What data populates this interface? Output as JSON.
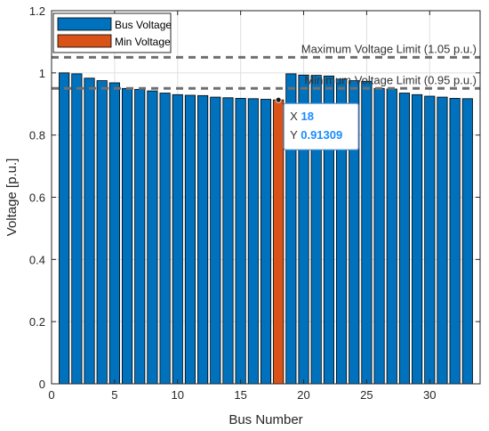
{
  "chart_data": {
    "type": "bar",
    "xlabel": "Bus Number",
    "ylabel": "Voltage [p.u.]",
    "xlim": [
      0,
      34
    ],
    "ylim": [
      0,
      1.2
    ],
    "xticks": [
      0,
      5,
      10,
      15,
      20,
      25,
      30
    ],
    "yticks": [
      0,
      0.2,
      0.4,
      0.6,
      0.8,
      1,
      1.2
    ],
    "x": [
      1,
      2,
      3,
      4,
      5,
      6,
      7,
      8,
      9,
      10,
      11,
      12,
      13,
      14,
      15,
      16,
      17,
      18,
      19,
      20,
      21,
      22,
      23,
      24,
      25,
      26,
      27,
      28,
      29,
      30,
      31,
      32,
      33
    ],
    "series": [
      {
        "name": "Bus Voltage",
        "color": "#0072bd",
        "values": [
          1.0,
          0.997,
          0.983,
          0.975,
          0.968,
          0.95,
          0.947,
          0.942,
          0.935,
          0.93,
          0.928,
          0.927,
          0.922,
          0.92,
          0.918,
          0.917,
          0.915,
          0.913,
          0.997,
          0.993,
          0.992,
          0.99,
          0.98,
          0.975,
          0.973,
          0.95,
          0.948,
          0.935,
          0.93,
          0.925,
          0.922,
          0.918,
          0.917
        ]
      },
      {
        "name": "Min Voltage",
        "color": "#d95319",
        "index": 18,
        "value": 0.91309
      }
    ],
    "limits": [
      {
        "label": "Maximum Voltage Limit (1.05 p.u.)",
        "value": 1.05
      },
      {
        "label": "Minimum Voltage Limit (0.95 p.u.)",
        "value": 0.95
      }
    ],
    "legend": {
      "placement": "top-left",
      "entries": [
        "Bus Voltage",
        "Min Voltage"
      ]
    },
    "grid": true,
    "datatip": {
      "x_key": "X",
      "x_value": "18",
      "y_key": "Y",
      "y_value": "0.91309"
    }
  }
}
